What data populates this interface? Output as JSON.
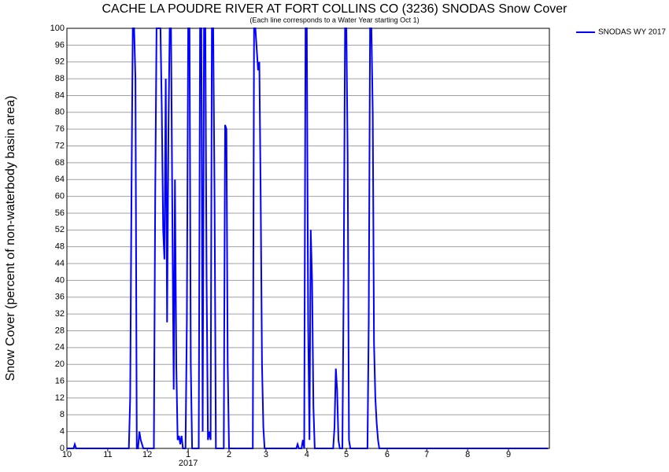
{
  "chart_data": {
    "type": "line",
    "title": "CACHE LA POUDRE RIVER AT FORT COLLINS CO (3236) SNODAS Snow Cover",
    "subtitle": "(Each line corresponds to a Water Year starting Oct 1)",
    "y_label": "Snow Cover (percent of non-waterbody basin area)",
    "year_label": "2017",
    "x": [
      0,
      5,
      6,
      7,
      47,
      48,
      49,
      50,
      51,
      52,
      53,
      54,
      55,
      56,
      58,
      66,
      67,
      68,
      69,
      71,
      72,
      73,
      74,
      75,
      76,
      77,
      78,
      79,
      80,
      81,
      82,
      83,
      84,
      85,
      86,
      87,
      88,
      90,
      91,
      92,
      93,
      94,
      95,
      100,
      101,
      102,
      103,
      104,
      105,
      106,
      107,
      108,
      109,
      110,
      111,
      112,
      113,
      119,
      120,
      121,
      122,
      123,
      141,
      142,
      143,
      144,
      145,
      146,
      147,
      148,
      149,
      150,
      174,
      175,
      176,
      178,
      179,
      180,
      181,
      182,
      183,
      184,
      185,
      186,
      187,
      188,
      202,
      203,
      204,
      205,
      206,
      207,
      209,
      210,
      211,
      212,
      213,
      214,
      215,
      228,
      229,
      230,
      231,
      232,
      233,
      234,
      235,
      236,
      237,
      365
    ],
    "series": [
      {
        "name": "SNODAS WY 2017",
        "color": "#0000ff",
        "values": [
          0,
          0,
          1,
          0,
          0,
          12,
          62,
          100,
          100,
          88,
          0,
          0,
          4,
          2,
          0,
          0,
          60,
          100,
          100,
          100,
          80,
          52,
          45,
          88,
          30,
          75,
          100,
          100,
          55,
          14,
          64,
          20,
          2,
          3,
          1,
          3,
          0,
          0,
          30,
          100,
          100,
          20,
          0,
          0,
          100,
          100,
          4,
          100,
          100,
          40,
          2,
          4,
          2,
          100,
          100,
          60,
          0,
          0,
          77,
          76,
          20,
          0,
          0,
          100,
          100,
          95,
          90,
          92,
          60,
          20,
          5,
          0,
          0,
          1,
          0,
          0,
          2,
          0,
          100,
          100,
          30,
          2,
          52,
          40,
          10,
          0,
          0,
          5,
          19,
          14,
          2,
          0,
          0,
          40,
          100,
          100,
          70,
          2,
          0,
          0,
          30,
          100,
          100,
          80,
          25,
          12,
          6,
          2,
          0,
          0
        ]
      }
    ],
    "xlim": [
      0,
      366
    ],
    "xticks": [
      {
        "value": 0,
        "label": "10"
      },
      {
        "value": 31,
        "label": "11"
      },
      {
        "value": 61,
        "label": "12"
      },
      {
        "value": 92,
        "label": "1"
      },
      {
        "value": 123,
        "label": "2"
      },
      {
        "value": 151,
        "label": "3"
      },
      {
        "value": 182,
        "label": "4"
      },
      {
        "value": 212,
        "label": "5"
      },
      {
        "value": 243,
        "label": "6"
      },
      {
        "value": 273,
        "label": "7"
      },
      {
        "value": 304,
        "label": "8"
      },
      {
        "value": 335,
        "label": "9"
      }
    ],
    "ylim": [
      0,
      100
    ],
    "yticks": [
      0,
      4,
      8,
      12,
      16,
      20,
      24,
      28,
      32,
      36,
      40,
      44,
      48,
      52,
      56,
      60,
      64,
      68,
      72,
      76,
      80,
      84,
      88,
      92,
      96,
      100
    ],
    "grid": true
  }
}
